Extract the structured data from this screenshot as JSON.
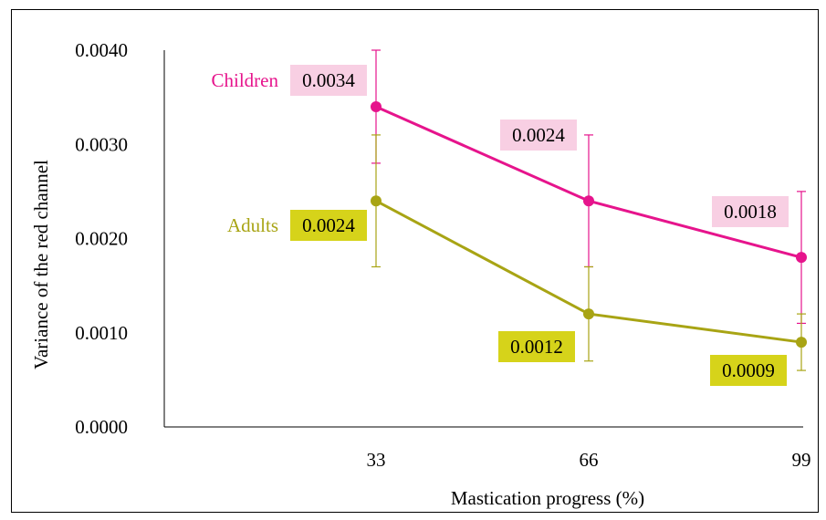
{
  "chart_data": {
    "type": "line",
    "title": "",
    "xlabel": "Mastication progress (%)",
    "ylabel": "Variance of the red channel",
    "categories": [
      "33",
      "66",
      "99"
    ],
    "x": [
      33,
      66,
      99
    ],
    "ylim": [
      0,
      0.004
    ],
    "yticks": [
      "0.0000",
      "0.0010",
      "0.0020",
      "0.0030",
      "0.0040"
    ],
    "grid": false,
    "series": [
      {
        "name": "Children",
        "color": "#e6148c",
        "label_bg": "#f8cfe3",
        "values": [
          0.0034,
          0.0024,
          0.0018
        ],
        "value_labels": [
          "0.0034",
          "0.0024",
          "0.0018"
        ],
        "error_high": [
          0.004,
          0.0031,
          0.0025
        ],
        "error_low": [
          0.0028,
          0.0017,
          0.0011
        ]
      },
      {
        "name": "Adults",
        "color": "#a8a414",
        "label_bg": "#d6d31a",
        "values": [
          0.0024,
          0.0012,
          0.0009
        ],
        "value_labels": [
          "0.0024",
          "0.0012",
          "0.0009"
        ],
        "error_high": [
          0.0031,
          0.0017,
          0.0012
        ],
        "error_low": [
          0.0017,
          0.0007,
          0.0006
        ]
      }
    ]
  }
}
